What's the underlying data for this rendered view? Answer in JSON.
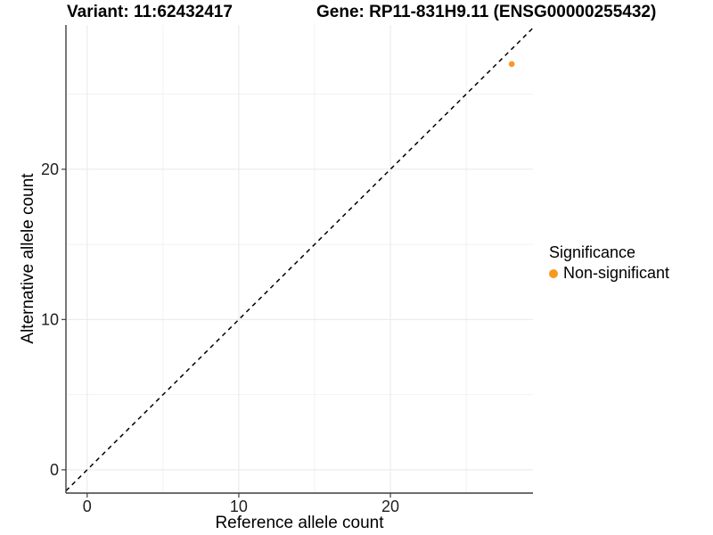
{
  "chart_data": {
    "type": "scatter",
    "title_left": "Variant: 11:62432417",
    "title_right": "Gene: RP11-831H9.11 (ENSG00000255432)",
    "xlabel": "Reference allele count",
    "ylabel": "Alternative allele count",
    "xlim": [
      -1.4,
      29.4
    ],
    "ylim": [
      -1.55,
      29.6
    ],
    "x_ticks": [
      0,
      10,
      20
    ],
    "y_ticks": [
      0,
      10,
      20
    ],
    "x_minor_ticks": [
      5,
      15,
      25
    ],
    "y_minor_ticks": [
      5,
      15,
      25
    ],
    "grid": "major+minor",
    "legend_position": "right",
    "points": [
      {
        "x": 28,
        "y": 27,
        "series": "Non-significant"
      }
    ],
    "identity_line": {
      "style": "dashed",
      "slope": 1,
      "intercept": 0
    },
    "legend": {
      "title": "Significance",
      "entries": [
        {
          "label": "Non-significant",
          "color": "#F8981F"
        }
      ]
    },
    "colors": {
      "non_significant": "#F8981F",
      "grid_major": "#E8E8E8",
      "grid_minor": "#F2F2F2",
      "axis_line": "#3F3F3F",
      "identity_line": "#000000",
      "tick_label": "#1F1F1F",
      "title_text": "#000000"
    }
  }
}
